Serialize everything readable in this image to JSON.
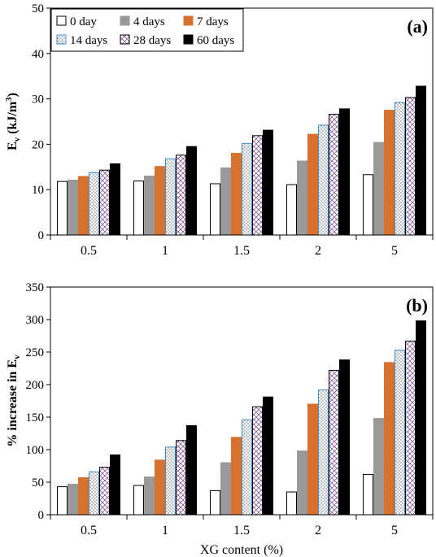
{
  "chart_data": [
    {
      "type": "bar",
      "panel_label": "(a)",
      "ylabel_main": "E",
      "ylabel_sub": "v",
      "ylabel_unit": " (kJ/m",
      "ylabel_sup": "3",
      "ylabel_close": ")",
      "xlabel": "",
      "categories": [
        "0.5",
        "1",
        "1.5",
        "2",
        "5"
      ],
      "ylim": [
        0,
        50
      ],
      "yticks": [
        "0",
        "10",
        "20",
        "30",
        "40",
        "50"
      ],
      "grid": false,
      "legend_position": "top-left",
      "series": [
        {
          "name": "0 day",
          "style": "white",
          "values": [
            11.8,
            11.9,
            11.3,
            11.1,
            13.3
          ]
        },
        {
          "name": "4 days",
          "style": "gray",
          "values": [
            12.1,
            13.0,
            14.8,
            16.3,
            20.4
          ]
        },
        {
          "name": "7 days",
          "style": "orange",
          "values": [
            12.9,
            15.1,
            18.0,
            22.2,
            27.5
          ]
        },
        {
          "name": "14 days",
          "style": "dotted",
          "values": [
            13.7,
            16.8,
            20.2,
            24.2,
            29.2
          ]
        },
        {
          "name": "28 days",
          "style": "crosshatch",
          "values": [
            14.3,
            17.6,
            21.9,
            26.6,
            30.3
          ]
        },
        {
          "name": "60 days",
          "style": "black",
          "values": [
            15.7,
            19.5,
            23.1,
            27.8,
            32.8
          ]
        }
      ]
    },
    {
      "type": "bar",
      "panel_label": "(b)",
      "ylabel_main": "% increase in E",
      "ylabel_sub": "v",
      "xlabel": "XG content (%)",
      "categories": [
        "0.5",
        "1",
        "1.5",
        "2",
        "5"
      ],
      "ylim": [
        0,
        350
      ],
      "yticks": [
        "0",
        "50",
        "100",
        "150",
        "200",
        "250",
        "300",
        "350"
      ],
      "grid": false,
      "series": [
        {
          "style": "white",
          "values": [
            43,
            45,
            37,
            35,
            62
          ]
        },
        {
          "style": "gray",
          "values": [
            47,
            58,
            80,
            98,
            148
          ]
        },
        {
          "style": "orange",
          "values": [
            57,
            84,
            119,
            170,
            234
          ]
        },
        {
          "style": "dotted",
          "values": [
            66,
            104,
            146,
            192,
            253
          ]
        },
        {
          "style": "crosshatch",
          "values": [
            73,
            114,
            166,
            222,
            267
          ]
        },
        {
          "style": "black",
          "values": [
            92,
            137,
            181,
            238,
            298
          ]
        }
      ]
    }
  ],
  "colors": {
    "gray": "#999999",
    "orange": "#d9712e",
    "dotted_border": "#3b8fd0",
    "crosshatch_line": "#8a5aa0",
    "black": "#000000",
    "white": "#ffffff"
  }
}
